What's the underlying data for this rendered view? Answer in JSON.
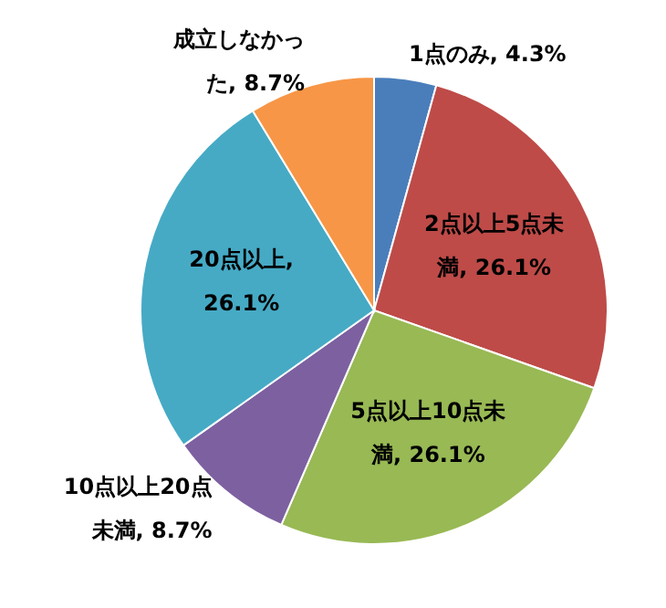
{
  "chart_data": {
    "type": "pie",
    "categories": [
      "1点のみ",
      "2点以上5点未満",
      "5点以上10点未満",
      "10点以上20点未満",
      "20点以上",
      "成立しなかった"
    ],
    "values": [
      4.3,
      26.1,
      26.1,
      8.7,
      26.1,
      8.7
    ],
    "colors": [
      "#4a7ebb",
      "#be4b48",
      "#98b954",
      "#7d60a0",
      "#46aac5",
      "#f79646"
    ],
    "value_labels": [
      ", 4.3%",
      ", 26.1%",
      ", 26.1%",
      ", 8.7%",
      ", 26.1%",
      ", 8.7%"
    ]
  }
}
